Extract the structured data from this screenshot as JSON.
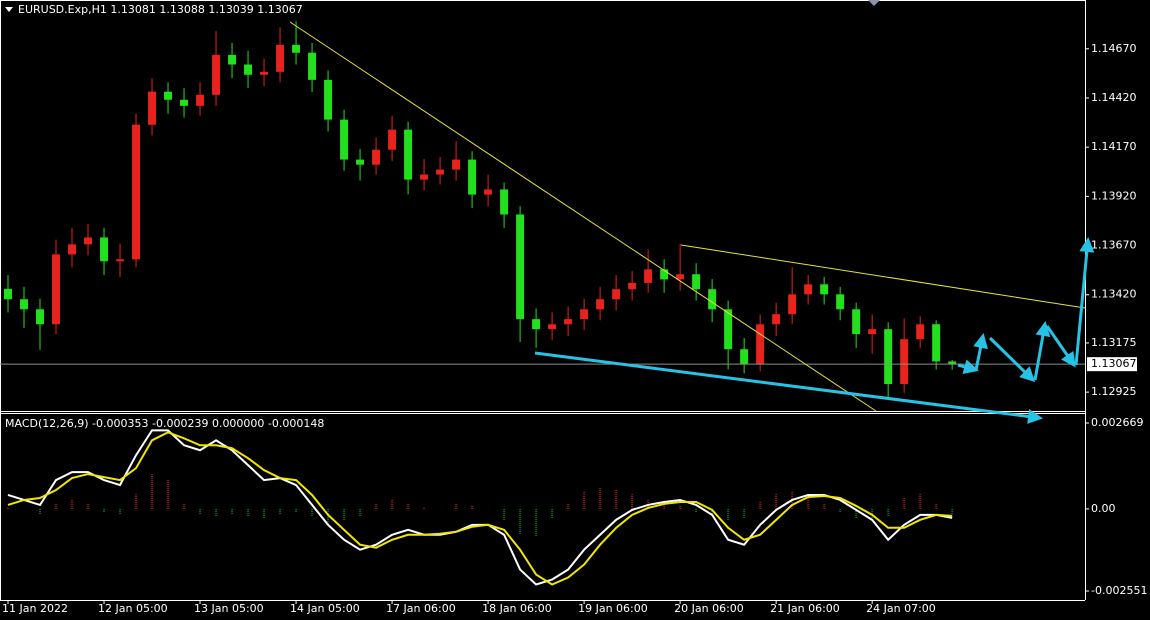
{
  "chart_data": [
    {
      "type": "candlestick",
      "title": "EURUSD.Exp,H1  1.13081 1.13088 1.13039 1.13067",
      "x": [
        0,
        1,
        2,
        3,
        4,
        5,
        6,
        7,
        8,
        9,
        10,
        11,
        12,
        13,
        14,
        15,
        16,
        17,
        18,
        19,
        20,
        21,
        22,
        23,
        24,
        25,
        26,
        27,
        28,
        29,
        30,
        31,
        32,
        33,
        34,
        35,
        36,
        37,
        38,
        39,
        40,
        41,
        42,
        43,
        44,
        45,
        46,
        47,
        48,
        49,
        50,
        51,
        52,
        53,
        54,
        55,
        56,
        57,
        58,
        59
      ],
      "open": [
        1.1345,
        1.13397,
        1.13346,
        1.1327,
        1.13625,
        1.13676,
        1.13711,
        1.1359,
        1.136,
        1.14284,
        1.14452,
        1.14411,
        1.1438,
        1.14436,
        1.14639,
        1.1459,
        1.14538,
        1.14553,
        1.1469,
        1.1465,
        1.14512,
        1.1431,
        1.14107,
        1.14081,
        1.14157,
        1.14259,
        1.14005,
        1.14031,
        1.14056,
        1.14107,
        1.13929,
        1.13955,
        1.13828,
        1.13296,
        1.13245,
        1.1327,
        1.13296,
        1.13346,
        1.13397,
        1.13448,
        1.1348,
        1.13549,
        1.13498,
        1.13524,
        1.13448,
        1.13346,
        1.13143,
        1.13067,
        1.1327,
        1.13321,
        1.13422,
        1.13473,
        1.13422,
        1.13346,
        1.1322,
        1.13245,
        1.12966,
        1.13194,
        1.1327,
        1.13081
      ],
      "high": [
        1.1352,
        1.1346,
        1.134,
        1.137,
        1.1376,
        1.1378,
        1.1376,
        1.1368,
        1.1434,
        1.1452,
        1.145,
        1.1447,
        1.145,
        1.1476,
        1.147,
        1.1466,
        1.1462,
        1.1478,
        1.1481,
        1.147,
        1.1456,
        1.1436,
        1.1416,
        1.1422,
        1.1433,
        1.143,
        1.1411,
        1.1412,
        1.142,
        1.1415,
        1.1403,
        1.1399,
        1.1387,
        1.1335,
        1.1333,
        1.1336,
        1.134,
        1.1346,
        1.1352,
        1.1354,
        1.1365,
        1.136,
        1.1368,
        1.1358,
        1.135,
        1.1339,
        1.132,
        1.1332,
        1.1338,
        1.1356,
        1.1352,
        1.1351,
        1.1346,
        1.1338,
        1.1332,
        1.1328,
        1.133,
        1.1331,
        1.1329,
        1.13088
      ],
      "low": [
        1.1333,
        1.1325,
        1.1314,
        1.1322,
        1.1356,
        1.1362,
        1.1352,
        1.1351,
        1.1356,
        1.1423,
        1.1434,
        1.1432,
        1.1433,
        1.1438,
        1.1452,
        1.1447,
        1.1448,
        1.145,
        1.1459,
        1.1445,
        1.1425,
        1.1405,
        1.14,
        1.1403,
        1.141,
        1.1393,
        1.1395,
        1.1398,
        1.14,
        1.1386,
        1.1387,
        1.1376,
        1.1318,
        1.1315,
        1.1319,
        1.1321,
        1.1324,
        1.1329,
        1.1334,
        1.1339,
        1.1343,
        1.1343,
        1.1344,
        1.1339,
        1.1328,
        1.1304,
        1.1302,
        1.1303,
        1.1321,
        1.1327,
        1.1337,
        1.1337,
        1.1329,
        1.1315,
        1.1312,
        1.129,
        1.1292,
        1.1315,
        1.1304,
        1.13039
      ],
      "close": [
        1.13397,
        1.13346,
        1.1327,
        1.13625,
        1.13676,
        1.13711,
        1.1359,
        1.136,
        1.14284,
        1.14452,
        1.14411,
        1.1438,
        1.14436,
        1.14639,
        1.1459,
        1.14538,
        1.14553,
        1.1469,
        1.1465,
        1.14512,
        1.1431,
        1.14107,
        1.14081,
        1.14157,
        1.14259,
        1.14005,
        1.14031,
        1.14056,
        1.14107,
        1.13929,
        1.13955,
        1.13828,
        1.13296,
        1.13245,
        1.1327,
        1.13296,
        1.13346,
        1.13397,
        1.13448,
        1.1348,
        1.13549,
        1.13498,
        1.13524,
        1.13448,
        1.13346,
        1.13143,
        1.13067,
        1.1327,
        1.13321,
        1.13422,
        1.13473,
        1.13422,
        1.13346,
        1.1322,
        1.13245,
        1.12966,
        1.13194,
        1.1327,
        1.13081,
        1.13067
      ],
      "up_color": "#e8221c",
      "down_color": "#22e01c",
      "ylim": [
        1.12829,
        1.14918
      ],
      "yticks": [
        {
          "value": 1.1467,
          "label": "1.14670"
        },
        {
          "value": 1.1442,
          "label": "1.14420"
        },
        {
          "value": 1.1417,
          "label": "1.14170"
        },
        {
          "value": 1.1392,
          "label": "1.13920"
        },
        {
          "value": 1.1367,
          "label": "1.13670"
        },
        {
          "value": 1.1342,
          "label": "1.13420"
        },
        1.13175,
        1.12925
      ],
      "current_price": {
        "value": 1.13067,
        "label": "1.13067"
      },
      "xlim": [
        -0.5,
        67.3
      ],
      "xticks": [
        {
          "value": 0,
          "label": "11 Jan 2022"
        },
        {
          "value": 6,
          "label": "12 Jan 05:00"
        },
        {
          "value": 12,
          "label": "13 Jan 05:00"
        },
        {
          "value": 18,
          "label": "14 Jan 05:00"
        },
        {
          "value": 24,
          "label": "17 Jan 06:00"
        },
        {
          "value": 30,
          "label": "18 Jan 06:00"
        },
        {
          "value": 36,
          "label": "19 Jan 06:00"
        },
        {
          "value": 42,
          "label": "20 Jan 06:00"
        },
        {
          "value": 48,
          "label": "21 Jan 06:00"
        },
        {
          "value": 54,
          "label": "24 Jan 07:00"
        }
      ]
    },
    {
      "type": "macd",
      "title": "MACD(12,26,9) -0.000353 -0.000239 0.000000 -0.000148",
      "x": [
        0,
        1,
        2,
        3,
        4,
        5,
        6,
        7,
        8,
        9,
        10,
        11,
        12,
        13,
        14,
        15,
        16,
        17,
        18,
        19,
        20,
        21,
        22,
        23,
        24,
        25,
        26,
        27,
        28,
        29,
        30,
        31,
        32,
        33,
        34,
        35,
        36,
        37,
        38,
        39,
        40,
        41,
        42,
        43,
        44,
        45,
        46,
        47,
        48,
        49,
        50,
        51,
        52,
        53,
        54,
        55,
        56,
        57,
        58,
        59
      ],
      "series": [
        {
          "color": "#ffffff",
          "values": [
            0.000433,
            0.000278,
            0.000124,
            0.000896,
            0.001143,
            0.001143,
            0.000896,
            0.000742,
            0.001669,
            0.002441,
            0.002441,
            0.001978,
            0.001823,
            0.002132,
            0.001823,
            0.00136,
            0.000896,
            0.000958,
            0.000742,
            0.000124,
            -0.000494,
            -0.000958,
            -0.001267,
            -0.001112,
            -0.000803,
            -0.000649,
            -0.000803,
            -0.000803,
            -0.000711,
            -0.000494,
            -0.000494,
            -0.000803,
            -0.001885,
            -0.002348,
            -0.002194,
            -0.001885,
            -0.001267,
            -0.000803,
            -0.00034,
            -3.1e-05,
            0.000124,
            0.000216,
            0.000278,
            0.000124,
            -0.000185,
            -0.000958,
            -0.001112,
            -0.000494,
            -3.1e-05,
            0.000278,
            0.000433,
            0.000433,
            0.000278,
            -3.1e-05,
            -0.00034,
            -0.000958,
            -0.000494,
            -0.000185,
            -0.000185,
            -0.000278
          ]
        },
        {
          "color": "#f2e600",
          "values": [
            0.000124,
            0.000278,
            0.00034,
            0.000587,
            0.000958,
            0.001082,
            0.000989,
            0.000896,
            0.001267,
            0.002132,
            0.002379,
            0.002194,
            0.001978,
            0.001978,
            0.001885,
            0.001576,
            0.001205,
            0.000958,
            0.000896,
            0.000433,
            -0.000185,
            -0.000649,
            -0.001112,
            -0.001205,
            -0.000958,
            -0.000803,
            -0.000803,
            -0.000773,
            -0.000711,
            -0.000556,
            -0.000494,
            -0.000649,
            -0.001267,
            -0.002039,
            -0.002348,
            -0.002132,
            -0.00173,
            -0.001112,
            -0.000587,
            -0.000185,
            3.1e-05,
            0.000155,
            0.000216,
            0.000216,
            -3.1e-05,
            -0.000587,
            -0.000958,
            -0.000803,
            -0.00034,
            0.000124,
            0.000371,
            0.000402,
            0.00034,
            9.3e-05,
            -0.000185,
            -0.000587,
            -0.000587,
            -0.00034,
            -0.000185,
            -0.000216
          ]
        }
      ],
      "histogram": {
        "up_color": "#a01c1c",
        "down_color": "#1f6e1f",
        "values": [
          6.2e-05,
          0,
          -0.000155,
          0.000155,
          0.000309,
          0.000185,
          -9.3e-05,
          -0.000155,
          0.000464,
          0.001082,
          0.000927,
          0.000155,
          -0.000185,
          -0.000247,
          -0.000155,
          -0.000247,
          -0.000309,
          -0.000155,
          -0.000124,
          -0.000247,
          -0.000464,
          -0.000371,
          -0.000247,
          0.000155,
          0.000309,
          0.000185,
          6.2e-05,
          0,
          0.000155,
          9.3e-05,
          0,
          -0.000371,
          -0.000773,
          -0.000865,
          -0.000309,
          0.000155,
          0.000556,
          0.00068,
          0.000618,
          0.000464,
          0.000309,
          0.000155,
          9.3e-05,
          -9.3e-05,
          -0.000247,
          -0.000371,
          -0.000309,
          0.000247,
          0.000464,
          0.000556,
          0.000371,
          0.000155,
          -9.3e-05,
          -0.000309,
          -0.000371,
          -0.000247,
          0.000371,
          0.000464,
          0.000185,
          -0.000155
        ]
      },
      "ylim": [
        -0.00283,
        0.00298
      ],
      "yticks": [
        0.002669,
        {
          "value": 0,
          "label": "0.00"
        },
        -0.002551
      ],
      "xlim": [
        -0.5,
        67.3
      ]
    }
  ]
}
